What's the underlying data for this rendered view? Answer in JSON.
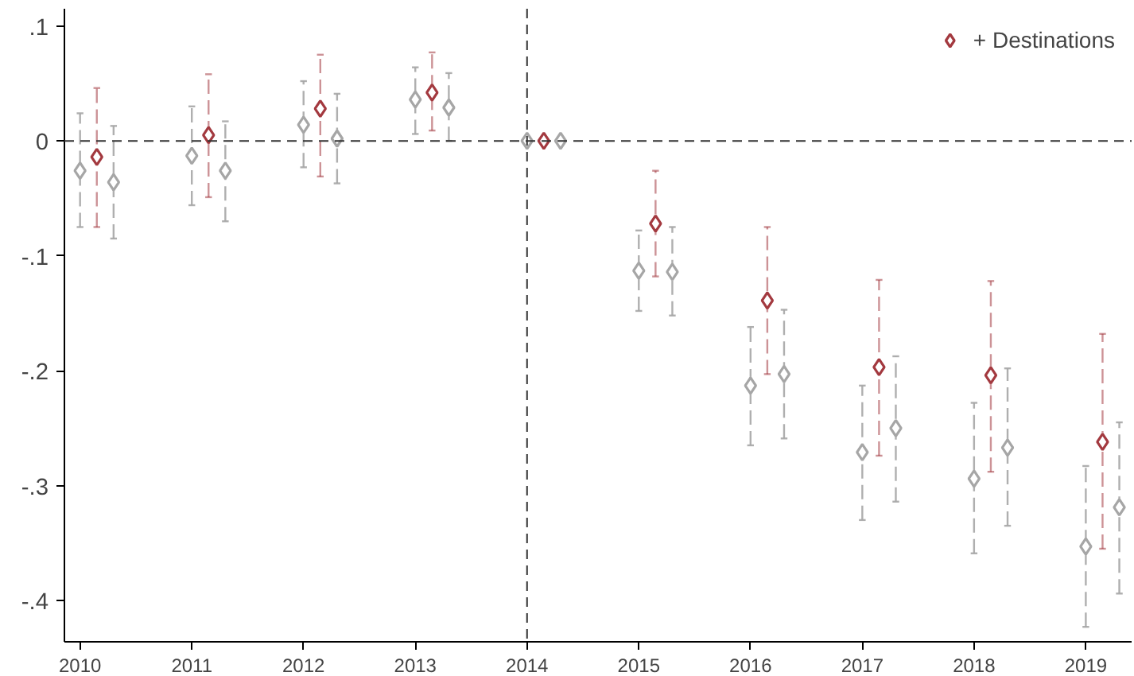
{
  "chart_data": {
    "type": "scatter",
    "marker": "diamond",
    "legend": "top right",
    "grid": false,
    "xlim": [
      2009.86,
      2019.41
    ],
    "xticks": [
      2010,
      2011,
      2012,
      2013,
      2014,
      2015,
      2016,
      2017,
      2018,
      2019
    ],
    "ylim": [
      -0.436,
      0.115
    ],
    "yticks": [
      {
        "value": 0.1,
        "label": ".1"
      },
      0,
      {
        "value": -0.1,
        "label": "-.1"
      },
      {
        "value": -0.2,
        "label": "-.2"
      },
      {
        "value": -0.3,
        "label": "-.3"
      },
      {
        "value": -0.4,
        "label": "-.4"
      }
    ],
    "ref_lines": [
      {
        "axis": "y",
        "value": 0,
        "label": null,
        "line_style": "dashed"
      },
      {
        "axis": "x",
        "value": 2014,
        "label": null,
        "line_style": "dashed"
      }
    ],
    "series": [
      {
        "color": "#a6a6a6",
        "x": [
          2010,
          2011,
          2012,
          2013,
          2014,
          2015,
          2016,
          2017,
          2018,
          2019
        ],
        "values": [
          -0.026,
          -0.013,
          0.014,
          0.036,
          0,
          -0.113,
          -0.213,
          -0.271,
          -0.294,
          -0.353
        ],
        "errors": [
          [
            -0.075,
            0.024
          ],
          [
            -0.056,
            0.03
          ],
          [
            -0.023,
            0.052
          ],
          [
            0.006,
            0.064
          ],
          null,
          [
            -0.148,
            -0.078
          ],
          [
            -0.265,
            -0.162
          ],
          [
            -0.33,
            -0.213
          ],
          [
            -0.359,
            -0.228
          ],
          [
            -0.423,
            -0.283
          ]
        ]
      },
      {
        "name": "+ Destinations",
        "color": "#a3393f",
        "x": [
          2010.15,
          2011.15,
          2012.15,
          2013.15,
          2014.15,
          2015.15,
          2016.15,
          2017.15,
          2018.15,
          2019.15
        ],
        "values": [
          -0.014,
          0.005,
          0.028,
          0.042,
          0,
          -0.072,
          -0.139,
          -0.197,
          -0.204,
          -0.262
        ],
        "errors": [
          [
            -0.075,
            0.046
          ],
          [
            -0.049,
            0.058
          ],
          [
            -0.031,
            0.075
          ],
          [
            0.009,
            0.077
          ],
          null,
          [
            -0.118,
            -0.026
          ],
          [
            -0.203,
            -0.075
          ],
          [
            -0.274,
            -0.121
          ],
          [
            -0.288,
            -0.122
          ],
          [
            -0.355,
            -0.168
          ]
        ]
      },
      {
        "color": "#a6a6a6",
        "x": [
          2010.3,
          2011.3,
          2012.3,
          2013.3,
          2014.3,
          2015.3,
          2016.3,
          2017.3,
          2018.3,
          2019.3
        ],
        "values": [
          -0.036,
          -0.026,
          0.002,
          0.029,
          0,
          -0.114,
          -0.203,
          -0.25,
          -0.267,
          -0.319
        ],
        "errors": [
          [
            -0.085,
            0.013
          ],
          [
            -0.07,
            0.017
          ],
          [
            -0.037,
            0.041
          ],
          [
            0,
            0.059
          ],
          null,
          [
            -0.152,
            -0.075
          ],
          [
            -0.259,
            -0.147
          ],
          [
            -0.314,
            -0.1875
          ],
          [
            -0.335,
            -0.198
          ],
          [
            -0.394,
            -0.245
          ]
        ]
      }
    ]
  }
}
